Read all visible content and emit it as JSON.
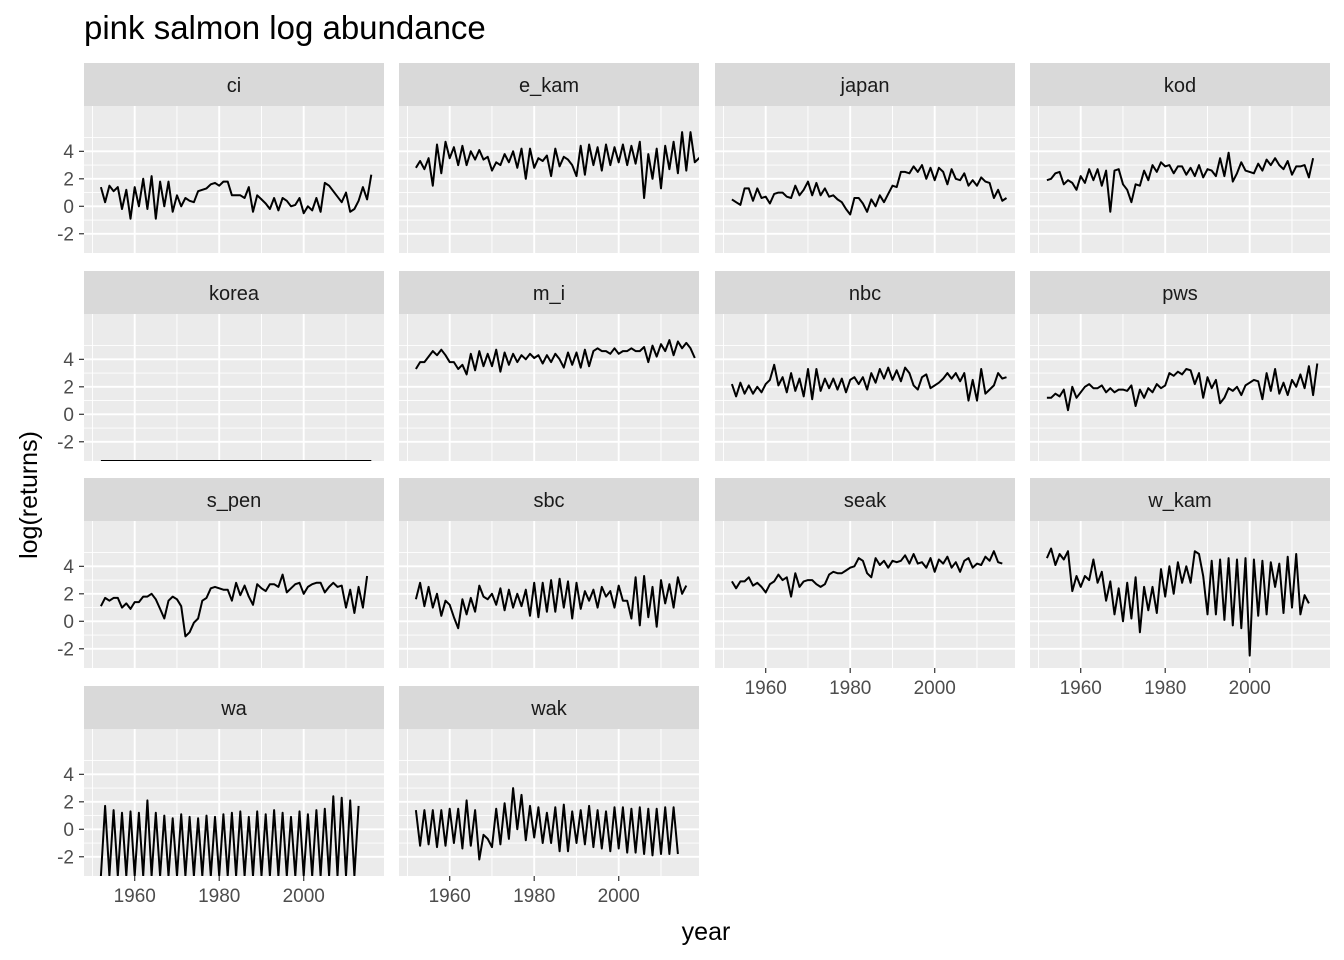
{
  "chart_data": {
    "type": "line",
    "title": "pink salmon log abundance",
    "xlabel": "year",
    "ylabel": "log(returns)",
    "xlim": [
      1948,
      2019
    ],
    "ylim": [
      -3.4,
      7.3
    ],
    "x_ticks": [
      1960,
      1980,
      2000
    ],
    "y_ticks": [
      -2,
      0,
      2,
      4
    ],
    "line_color": "#000000",
    "panel_background": "#ebebeb",
    "strip_background": "#d9d9d9",
    "grid": true,
    "facet_columns": 4,
    "x_start": 1952,
    "panels": [
      {
        "name": "ci",
        "values": [
          1.4,
          0.3,
          1.5,
          1.1,
          1.4,
          -0.2,
          1.2,
          -0.9,
          1.4,
          0.0,
          2.0,
          -0.2,
          2.2,
          -0.9,
          1.8,
          0.0,
          1.8,
          -0.4,
          0.8,
          0.0,
          0.6,
          0.4,
          0.3,
          1.1,
          1.2,
          1.3,
          1.6,
          1.7,
          1.5,
          1.8,
          1.8,
          0.8,
          0.8,
          0.8,
          0.6,
          1.4,
          -0.4,
          0.8,
          0.5,
          0.2,
          -0.2,
          0.6,
          -0.3,
          0.6,
          0.4,
          0.0,
          0.1,
          0.6,
          -0.5,
          0.0,
          -0.3,
          0.6,
          -0.4,
          1.7,
          1.5,
          1.1,
          0.7,
          0.3,
          1.0,
          -0.4,
          -0.2,
          0.4,
          1.4,
          0.5,
          2.3
        ]
      },
      {
        "name": "e_kam",
        "values": [
          2.8,
          3.3,
          2.7,
          3.5,
          1.5,
          4.5,
          2.4,
          4.7,
          3.5,
          4.3,
          3.0,
          4.4,
          3.0,
          4.0,
          3.4,
          4.1,
          3.4,
          3.6,
          2.6,
          3.2,
          3.0,
          3.8,
          3.2,
          4.0,
          2.8,
          4.2,
          2.0,
          4.2,
          2.8,
          3.5,
          3.3,
          3.7,
          2.2,
          4.2,
          2.9,
          3.6,
          3.4,
          3.0,
          2.2,
          4.4,
          2.3,
          4.5,
          3.0,
          4.3,
          2.6,
          4.5,
          3.0,
          4.3,
          3.2,
          4.5,
          3.0,
          4.4,
          3.1,
          4.7,
          0.6,
          3.8,
          2.0,
          4.2,
          1.3,
          4.4,
          2.7,
          4.7,
          2.4,
          5.4,
          2.6,
          5.4,
          3.2,
          3.5,
          3.8,
          5.1
        ]
      },
      {
        "name": "japan",
        "values": [
          0.5,
          0.3,
          0.1,
          1.3,
          1.3,
          0.4,
          1.3,
          0.6,
          0.7,
          0.2,
          0.9,
          1.0,
          1.0,
          0.7,
          0.6,
          1.5,
          0.8,
          1.2,
          1.8,
          0.8,
          1.7,
          0.8,
          1.3,
          0.7,
          0.8,
          0.5,
          0.3,
          -0.2,
          -0.6,
          0.6,
          0.6,
          0.2,
          -0.4,
          0.5,
          0.0,
          0.8,
          0.3,
          0.9,
          1.5,
          1.4,
          2.5,
          2.5,
          2.4,
          2.9,
          2.5,
          3.0,
          2.0,
          2.8,
          1.9,
          2.8,
          2.5,
          1.6,
          2.7,
          2.0,
          1.9,
          2.4,
          1.5,
          1.9,
          1.5,
          2.1,
          1.8,
          1.7,
          0.6,
          1.2,
          0.4,
          0.6
        ]
      },
      {
        "name": "kod",
        "values": [
          1.9,
          2.0,
          2.4,
          2.5,
          1.6,
          1.9,
          1.7,
          1.2,
          2.2,
          1.7,
          2.7,
          1.9,
          2.7,
          1.5,
          2.6,
          -0.4,
          2.6,
          2.7,
          1.6,
          1.2,
          0.3,
          1.6,
          1.5,
          2.6,
          1.9,
          3.0,
          2.5,
          3.2,
          2.9,
          3.0,
          2.4,
          2.9,
          2.9,
          2.3,
          2.8,
          2.2,
          3.0,
          2.1,
          2.7,
          2.6,
          2.2,
          3.5,
          2.2,
          3.9,
          1.8,
          2.4,
          3.2,
          2.6,
          2.5,
          2.4,
          3.1,
          2.6,
          3.4,
          3.0,
          3.5,
          3.0,
          2.7,
          3.3,
          2.3,
          2.9,
          2.9,
          3.0,
          2.1,
          3.5
        ]
      },
      {
        "name": "korea",
        "values": [
          -3.4,
          -3.4,
          -3.4,
          -3.4,
          -3.4,
          -3.4,
          -3.4,
          -3.4,
          -3.4,
          -3.4,
          -3.4,
          -3.4,
          -3.4,
          -3.4,
          -3.4,
          -3.4,
          -3.4,
          -3.4,
          -3.4,
          -3.4,
          -3.4,
          -3.4,
          -3.4,
          -3.4,
          -3.4,
          -3.4,
          -3.4,
          -3.4,
          -3.4,
          -3.4,
          -3.4,
          -3.4,
          -3.4,
          -3.4,
          -3.4,
          -3.4,
          -3.4,
          -3.4,
          -3.4,
          -3.4,
          -3.4,
          -3.4,
          -3.4,
          -3.4,
          -3.4,
          -3.4,
          -3.4,
          -3.4,
          -3.4,
          -3.4,
          -3.4,
          -3.4,
          -3.4,
          -3.4,
          -3.4,
          -3.4,
          -3.4,
          -3.4,
          -3.4,
          -3.4,
          -3.4,
          -3.4,
          -3.4,
          -3.4,
          -3.4
        ]
      },
      {
        "name": "m_i",
        "values": [
          3.3,
          3.8,
          3.8,
          4.2,
          4.6,
          4.3,
          4.7,
          4.3,
          3.8,
          3.8,
          3.3,
          3.6,
          2.9,
          4.4,
          3.2,
          4.6,
          3.5,
          4.4,
          3.5,
          4.7,
          3.1,
          4.5,
          3.6,
          4.4,
          3.8,
          4.3,
          4.0,
          4.4,
          4.1,
          4.3,
          3.7,
          4.3,
          3.8,
          4.4,
          4.0,
          3.4,
          4.5,
          3.6,
          4.5,
          3.4,
          4.7,
          3.5,
          4.6,
          4.8,
          4.6,
          4.6,
          4.4,
          4.8,
          4.4,
          4.6,
          4.6,
          4.8,
          4.6,
          4.6,
          4.9,
          3.8,
          5.0,
          4.2,
          5.1,
          4.6,
          5.4,
          4.3,
          5.3,
          4.8,
          5.2,
          4.8,
          4.1
        ]
      },
      {
        "name": "nbc",
        "values": [
          2.2,
          1.3,
          2.3,
          1.5,
          2.1,
          1.5,
          2.0,
          1.6,
          2.2,
          2.5,
          3.6,
          2.1,
          2.7,
          1.6,
          3.0,
          1.7,
          2.6,
          1.3,
          3.3,
          1.1,
          3.3,
          1.7,
          2.6,
          1.9,
          2.6,
          1.8,
          2.6,
          1.6,
          2.5,
          2.7,
          2.2,
          2.7,
          1.8,
          3.0,
          2.3,
          3.3,
          2.6,
          3.4,
          2.5,
          3.2,
          2.4,
          3.4,
          3.0,
          2.1,
          1.8,
          2.7,
          2.9,
          1.9,
          2.1,
          2.3,
          2.6,
          3.0,
          2.6,
          3.0,
          2.4,
          3.0,
          1.0,
          2.5,
          1.0,
          3.3,
          1.5,
          1.8,
          2.1,
          3.0,
          2.6,
          2.7
        ]
      },
      {
        "name": "pws",
        "values": [
          1.2,
          1.2,
          1.5,
          1.3,
          1.8,
          0.3,
          2.0,
          1.2,
          1.6,
          2.0,
          2.2,
          1.9,
          1.9,
          2.1,
          1.6,
          1.9,
          1.6,
          1.8,
          1.8,
          1.7,
          2.1,
          0.6,
          1.8,
          1.2,
          1.9,
          1.6,
          2.2,
          1.9,
          2.1,
          3.0,
          2.8,
          3.1,
          2.9,
          3.3,
          3.2,
          2.2,
          3.0,
          1.2,
          2.7,
          1.9,
          2.5,
          0.8,
          1.2,
          1.9,
          1.7,
          2.0,
          1.4,
          2.1,
          2.3,
          2.5,
          2.4,
          1.1,
          3.0,
          1.7,
          3.3,
          1.5,
          2.3,
          1.4,
          2.5,
          2.0,
          2.9,
          1.9,
          3.5,
          1.4,
          3.7
        ]
      },
      {
        "name": "s_pen",
        "values": [
          1.1,
          1.7,
          1.5,
          1.7,
          1.7,
          1.0,
          1.3,
          0.9,
          1.4,
          1.4,
          1.8,
          1.8,
          2.0,
          1.6,
          0.9,
          0.2,
          1.5,
          1.8,
          1.6,
          1.1,
          -1.1,
          -0.8,
          -0.1,
          0.2,
          1.5,
          1.7,
          2.4,
          2.5,
          2.4,
          2.3,
          2.3,
          1.5,
          2.8,
          1.9,
          2.6,
          1.8,
          1.2,
          2.7,
          2.4,
          2.2,
          2.7,
          2.7,
          2.5,
          3.4,
          2.1,
          2.4,
          2.7,
          2.8,
          2.0,
          2.5,
          2.7,
          2.8,
          2.8,
          2.1,
          2.5,
          2.8,
          2.5,
          2.6,
          1.0,
          2.3,
          0.6,
          2.5,
          1.0,
          3.3
        ]
      },
      {
        "name": "sbc",
        "values": [
          1.6,
          2.8,
          1.1,
          2.5,
          1.0,
          2.0,
          0.4,
          1.5,
          1.2,
          0.3,
          -0.5,
          1.6,
          0.5,
          1.7,
          0.7,
          2.6,
          1.8,
          1.6,
          2.0,
          1.2,
          2.4,
          0.8,
          2.3,
          1.0,
          2.0,
          1.1,
          2.3,
          0.4,
          2.8,
          0.3,
          2.8,
          0.7,
          3.0,
          0.7,
          3.1,
          1.0,
          2.9,
          0.2,
          2.8,
          0.9,
          2.2,
          1.5,
          2.3,
          1.0,
          2.5,
          1.8,
          2.2,
          1.0,
          2.6,
          1.5,
          1.5,
          0.2,
          3.2,
          -0.3,
          3.3,
          0.3,
          2.5,
          -0.4,
          3.0,
          1.3,
          2.7,
          1.0,
          3.2,
          2.0,
          2.6
        ]
      },
      {
        "name": "seak",
        "values": [
          2.9,
          2.4,
          2.9,
          2.9,
          3.2,
          2.6,
          2.8,
          2.5,
          2.1,
          2.7,
          2.9,
          3.4,
          3.0,
          3.2,
          1.8,
          3.5,
          2.5,
          2.9,
          3.0,
          3.0,
          2.7,
          2.5,
          2.7,
          3.4,
          3.6,
          3.5,
          3.5,
          3.7,
          3.9,
          4.0,
          4.6,
          4.4,
          3.5,
          3.2,
          4.6,
          4.1,
          4.4,
          3.9,
          4.4,
          4.3,
          4.4,
          4.8,
          4.2,
          4.9,
          4.2,
          4.3,
          3.9,
          4.6,
          3.6,
          4.5,
          4.2,
          4.7,
          3.9,
          4.3,
          3.6,
          4.4,
          4.6,
          3.9,
          4.2,
          4.1,
          4.7,
          4.4,
          5.1,
          4.3,
          4.2
        ]
      },
      {
        "name": "w_kam",
        "values": [
          4.6,
          5.3,
          4.1,
          4.9,
          4.5,
          5.1,
          2.2,
          3.3,
          2.5,
          3.3,
          3.0,
          4.5,
          2.8,
          3.6,
          1.5,
          2.9,
          0.5,
          2.4,
          0.0,
          2.8,
          0.2,
          3.2,
          -0.8,
          2.5,
          0.8,
          2.5,
          0.6,
          3.8,
          1.8,
          4.0,
          2.0,
          4.3,
          2.8,
          4.0,
          2.8,
          5.1,
          4.9,
          3.3,
          0.5,
          4.4,
          0.5,
          4.5,
          0.1,
          4.6,
          -0.3,
          4.5,
          -0.5,
          4.6,
          -2.5,
          4.5,
          0.4,
          4.4,
          0.5,
          4.3,
          2.5,
          4.2,
          0.6,
          4.7,
          1.0,
          4.9,
          0.5,
          1.9,
          1.3
        ]
      },
      {
        "name": "wa",
        "values": [
          -3.4,
          1.7,
          -3.4,
          1.4,
          -3.4,
          1.2,
          -3.4,
          1.3,
          -3.4,
          1.2,
          -3.4,
          2.1,
          -3.4,
          1.2,
          -3.4,
          1.0,
          -3.4,
          0.8,
          -3.4,
          1.1,
          -3.4,
          0.9,
          -3.4,
          0.8,
          -3.4,
          1.0,
          -3.4,
          0.9,
          -3.4,
          1.1,
          -3.4,
          1.2,
          -3.4,
          1.3,
          -3.4,
          0.9,
          -3.4,
          1.3,
          -3.4,
          1.1,
          -3.4,
          1.4,
          -3.4,
          1.2,
          -3.4,
          0.9,
          -3.4,
          1.3,
          -3.4,
          1.1,
          -3.4,
          1.4,
          -3.4,
          1.5,
          -3.4,
          2.4,
          -3.4,
          2.3,
          -3.4,
          2.1,
          -3.4,
          1.7
        ]
      },
      {
        "name": "wak",
        "values": [
          1.4,
          -1.2,
          1.4,
          -1.1,
          1.4,
          -1.3,
          1.4,
          -1.2,
          1.5,
          -1.0,
          1.5,
          -1.4,
          2.1,
          -1.2,
          1.4,
          -2.2,
          -0.4,
          -0.7,
          -1.3,
          1.5,
          -1.1,
          1.9,
          -0.7,
          3.0,
          0.0,
          2.5,
          -0.8,
          1.7,
          -0.6,
          1.6,
          -1.0,
          1.2,
          -1.0,
          1.6,
          -1.6,
          1.8,
          -1.6,
          1.3,
          -1.0,
          1.4,
          -1.1,
          1.7,
          -1.3,
          1.4,
          -1.4,
          1.3,
          -1.6,
          1.6,
          -1.4,
          1.6,
          -1.7,
          1.5,
          -1.7,
          1.6,
          -1.8,
          1.5,
          -1.9,
          1.5,
          -1.8,
          1.6,
          -1.8,
          1.6,
          -1.8
        ]
      }
    ]
  }
}
